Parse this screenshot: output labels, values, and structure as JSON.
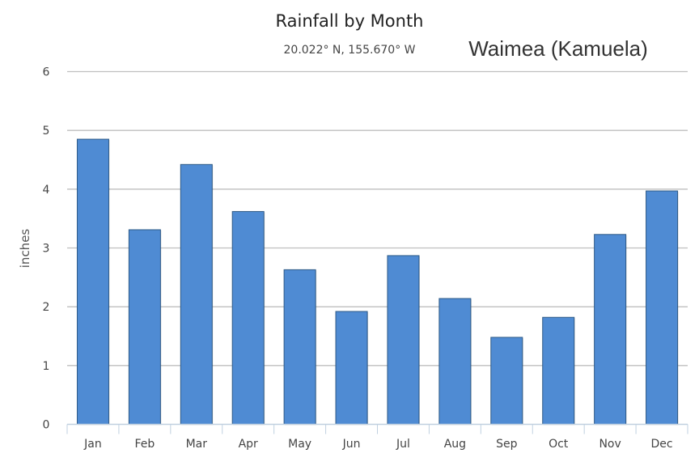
{
  "chart_data": {
    "type": "bar",
    "title": "Rainfall by Month",
    "subtitle": "20.022° N, 155.670° W",
    "location_label": "Waimea (Kamuela)",
    "xlabel": "",
    "ylabel": "inches",
    "categories": [
      "Jan",
      "Feb",
      "Mar",
      "Apr",
      "May",
      "Jun",
      "Jul",
      "Aug",
      "Sep",
      "Oct",
      "Nov",
      "Dec"
    ],
    "values": [
      4.85,
      3.31,
      4.42,
      3.62,
      2.63,
      1.92,
      2.87,
      2.14,
      1.48,
      1.82,
      3.23,
      3.97
    ],
    "ylim": [
      0,
      6
    ],
    "yticks": [
      "0",
      "1",
      "2",
      "3",
      "4",
      "5",
      "6"
    ],
    "grid": true,
    "legend": "none",
    "colors": {
      "bar": "#4f8bd3",
      "bar_border": "#2e5a86",
      "grid": "#bfbfbf",
      "axis": "#c0d0e0"
    }
  }
}
